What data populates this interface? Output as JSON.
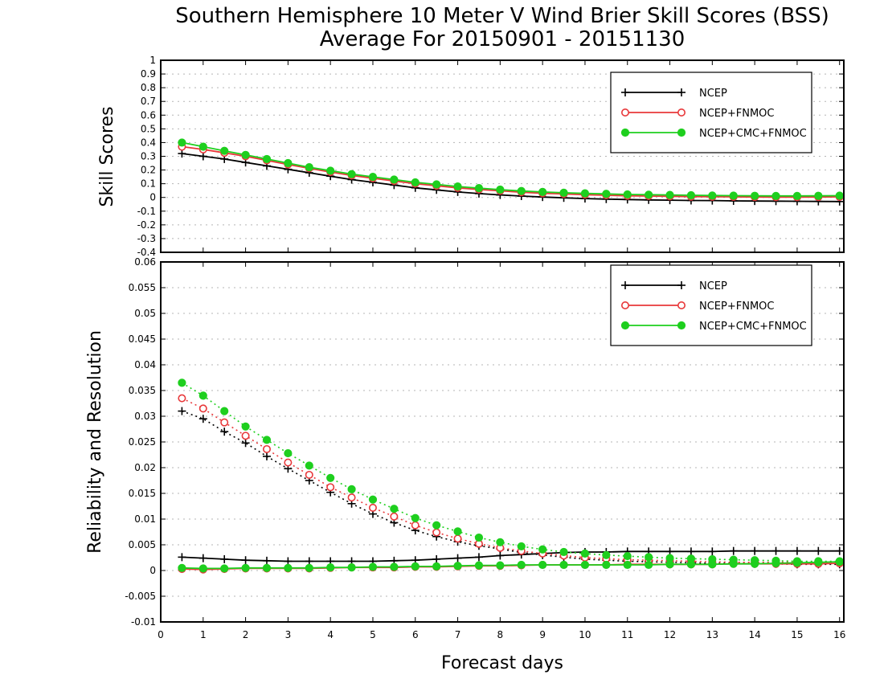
{
  "title_line1": "Southern Hemisphere 10 Meter V Wind Brier Skill Scores (BSS)",
  "title_line2": "Average For 20150901 - 20151130",
  "colors": {
    "NCEP": "#000000",
    "NCEP+FNMOC": "#e8383a",
    "NCEP+CMC+FNMOC": "#1ecf1e"
  },
  "chart_data": [
    {
      "type": "line",
      "ylabel": "Skill Scores",
      "xlabel": "",
      "xlim": [
        0,
        16.1
      ],
      "ylim": [
        -0.4,
        1
      ],
      "grid": true,
      "legend_position": "top-right",
      "yticks": [
        "1",
        "0.9",
        "0.8",
        "0.7",
        "0.6",
        "0.5",
        "0.4",
        "0.3",
        "0.2",
        "0.1",
        "0",
        "-0.1",
        "-0.2",
        "-0.3",
        "-0.4"
      ],
      "x": [
        0.5,
        1,
        1.5,
        2,
        2.5,
        3,
        3.5,
        4,
        4.5,
        5,
        5.5,
        6,
        6.5,
        7,
        7.5,
        8,
        8.5,
        9,
        9.5,
        10,
        10.5,
        11,
        11.5,
        12,
        12.5,
        13,
        13.5,
        14,
        14.5,
        15,
        15.5,
        16
      ],
      "series": [
        {
          "name": "NCEP",
          "values": [
            0.32,
            0.3,
            0.28,
            0.255,
            0.23,
            0.205,
            0.18,
            0.155,
            0.13,
            0.11,
            0.09,
            0.07,
            0.055,
            0.04,
            0.028,
            0.018,
            0.01,
            0.003,
            -0.003,
            -0.008,
            -0.012,
            -0.015,
            -0.018,
            -0.02,
            -0.022,
            -0.023,
            -0.025,
            -0.026,
            -0.027,
            -0.028,
            -0.029,
            -0.03
          ]
        },
        {
          "name": "NCEP+FNMOC",
          "values": [
            0.37,
            0.35,
            0.325,
            0.3,
            0.27,
            0.24,
            0.212,
            0.185,
            0.16,
            0.14,
            0.12,
            0.1,
            0.085,
            0.07,
            0.058,
            0.048,
            0.038,
            0.03,
            0.025,
            0.02,
            0.016,
            0.012,
            0.01,
            0.008,
            0.006,
            0.005,
            0.004,
            0.003,
            0.002,
            0.002,
            0.003,
            0.004
          ]
        },
        {
          "name": "NCEP+CMC+FNMOC",
          "values": [
            0.4,
            0.37,
            0.34,
            0.31,
            0.28,
            0.25,
            0.22,
            0.195,
            0.17,
            0.15,
            0.13,
            0.11,
            0.095,
            0.08,
            0.068,
            0.057,
            0.047,
            0.04,
            0.034,
            0.03,
            0.026,
            0.022,
            0.02,
            0.018,
            0.016,
            0.014,
            0.013,
            0.012,
            0.011,
            0.011,
            0.012,
            0.013
          ]
        }
      ]
    },
    {
      "type": "line",
      "ylabel": "Reliability and Resolution",
      "xlabel": "Forecast days",
      "xlim": [
        0,
        16.1
      ],
      "ylim": [
        -0.01,
        0.06
      ],
      "grid": true,
      "legend_position": "top-right",
      "xticks": [
        "0",
        "1",
        "2",
        "3",
        "4",
        "5",
        "6",
        "7",
        "8",
        "9",
        "10",
        "11",
        "12",
        "13",
        "14",
        "15",
        "16"
      ],
      "yticks": [
        "0.06",
        "0.055",
        "0.05",
        "0.045",
        "0.04",
        "0.035",
        "0.03",
        "0.025",
        "0.02",
        "0.015",
        "0.01",
        "0.005",
        "0",
        "-0.005",
        "-0.01"
      ],
      "x": [
        0.5,
        1,
        1.5,
        2,
        2.5,
        3,
        3.5,
        4,
        4.5,
        5,
        5.5,
        6,
        6.5,
        7,
        7.5,
        8,
        8.5,
        9,
        9.5,
        10,
        10.5,
        11,
        11.5,
        12,
        12.5,
        13,
        13.5,
        14,
        14.5,
        15,
        15.5,
        16
      ],
      "series": [
        {
          "name": "NCEP",
          "values": [
            0.0026,
            0.0024,
            0.0022,
            0.002,
            0.0019,
            0.0018,
            0.0018,
            0.0018,
            0.0018,
            0.0018,
            0.0019,
            0.002,
            0.0022,
            0.0024,
            0.0026,
            0.0029,
            0.0031,
            0.0033,
            0.0035,
            0.0036,
            0.0036,
            0.0037,
            0.0037,
            0.0037,
            0.0037,
            0.0037,
            0.0038,
            0.0038,
            0.0038,
            0.0038,
            0.0038,
            0.0038
          ]
        },
        {
          "name": "NCEP",
          "values": [
            0.031,
            0.0295,
            0.027,
            0.0248,
            0.0222,
            0.0198,
            0.0175,
            0.0152,
            0.013,
            0.011,
            0.0093,
            0.0078,
            0.0066,
            0.0056,
            0.0048,
            0.0042,
            0.0035,
            0.003,
            0.0026,
            0.0022,
            0.002,
            0.0018,
            0.0017,
            0.0016,
            0.0015,
            0.0014,
            0.0014,
            0.0013,
            0.0013,
            0.0012,
            0.0012,
            0.0012
          ]
        },
        {
          "name": "NCEP+FNMOC",
          "values": [
            0.0003,
            0.0002,
            0.0003,
            0.0004,
            0.0004,
            0.0004,
            0.0004,
            0.0005,
            0.0006,
            0.0006,
            0.0006,
            0.0007,
            0.0007,
            0.0008,
            0.0009,
            0.0009,
            0.001,
            0.0011,
            0.0011,
            0.0011,
            0.0011,
            0.0012,
            0.0012,
            0.0012,
            0.0012,
            0.0012,
            0.0013,
            0.0013,
            0.0013,
            0.0013,
            0.0013,
            0.0014
          ]
        },
        {
          "name": "NCEP+FNMOC",
          "values": [
            0.0335,
            0.0315,
            0.0288,
            0.0262,
            0.0236,
            0.021,
            0.0186,
            0.0162,
            0.0142,
            0.0122,
            0.0105,
            0.0088,
            0.0074,
            0.0062,
            0.0052,
            0.0044,
            0.0038,
            0.0033,
            0.0029,
            0.0025,
            0.0023,
            0.0021,
            0.002,
            0.0019,
            0.0018,
            0.0017,
            0.0016,
            0.0016,
            0.0016,
            0.0016,
            0.0016,
            0.0016
          ]
        },
        {
          "name": "NCEP+CMC+FNMOC",
          "values": [
            0.0005,
            0.0004,
            0.0004,
            0.0005,
            0.0005,
            0.0005,
            0.0005,
            0.0006,
            0.0006,
            0.0007,
            0.0007,
            0.0008,
            0.0008,
            0.0009,
            0.001,
            0.001,
            0.0011,
            0.0011,
            0.0011,
            0.0011,
            0.0011,
            0.0011,
            0.0011,
            0.0012,
            0.0012,
            0.0012,
            0.0013,
            0.0013,
            0.0014,
            0.0015,
            0.0016,
            0.0017
          ]
        },
        {
          "name": "NCEP+CMC+FNMOC",
          "values": [
            0.0365,
            0.034,
            0.031,
            0.028,
            0.0254,
            0.0228,
            0.0204,
            0.018,
            0.0158,
            0.0138,
            0.012,
            0.0102,
            0.0088,
            0.0076,
            0.0064,
            0.0055,
            0.0047,
            0.0041,
            0.0036,
            0.0033,
            0.003,
            0.0028,
            0.0026,
            0.0024,
            0.0023,
            0.0022,
            0.0021,
            0.002,
            0.0019,
            0.0018,
            0.0018,
            0.0018
          ]
        }
      ]
    }
  ]
}
